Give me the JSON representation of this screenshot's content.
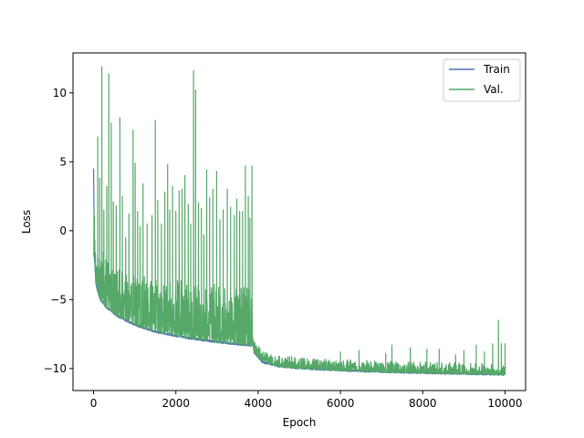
{
  "chart_data": {
    "type": "line",
    "title": "",
    "xlabel": "Epoch",
    "ylabel": "Loss",
    "xlim": [
      -500,
      10500
    ],
    "ylim": [
      -11.6,
      12.9
    ],
    "x_ticks": [
      0,
      2000,
      4000,
      6000,
      8000,
      10000
    ],
    "x_tick_labels": [
      "0",
      "2000",
      "4000",
      "6000",
      "8000",
      "10000"
    ],
    "y_ticks": [
      -10,
      -5,
      0,
      5,
      10
    ],
    "y_tick_labels": [
      "−10",
      "−5",
      "0",
      "5",
      "10"
    ],
    "grid": false,
    "legend_position": "top-right",
    "series": [
      {
        "name": "Train",
        "color": "#4c72b0",
        "baseline": [
          [
            0,
            4.5
          ],
          [
            20,
            -2.0
          ],
          [
            60,
            -4.0
          ],
          [
            150,
            -5.0
          ],
          [
            300,
            -5.6
          ],
          [
            600,
            -6.3
          ],
          [
            1000,
            -6.9
          ],
          [
            1500,
            -7.4
          ],
          [
            2000,
            -7.7
          ],
          [
            2500,
            -7.95
          ],
          [
            3000,
            -8.15
          ],
          [
            3500,
            -8.3
          ],
          [
            3850,
            -8.4
          ],
          [
            3870,
            -8.2
          ],
          [
            3900,
            -8.9
          ],
          [
            4100,
            -9.6
          ],
          [
            4500,
            -9.9
          ],
          [
            5000,
            -10.05
          ],
          [
            6000,
            -10.2
          ],
          [
            7000,
            -10.3
          ],
          [
            8000,
            -10.38
          ],
          [
            9000,
            -10.45
          ],
          [
            10000,
            -10.5
          ]
        ]
      },
      {
        "name": "Val.",
        "color": "#55a868",
        "baseline": [
          [
            0,
            -1.8
          ],
          [
            20,
            -2.3
          ],
          [
            60,
            -4.0
          ],
          [
            150,
            -4.9
          ],
          [
            300,
            -5.5
          ],
          [
            600,
            -6.2
          ],
          [
            1000,
            -6.8
          ],
          [
            1500,
            -7.3
          ],
          [
            2000,
            -7.6
          ],
          [
            2500,
            -7.85
          ],
          [
            3000,
            -8.05
          ],
          [
            3500,
            -8.2
          ],
          [
            3850,
            -8.3
          ],
          [
            3870,
            -7.9
          ],
          [
            3900,
            -8.8
          ],
          [
            4100,
            -9.5
          ],
          [
            4500,
            -9.85
          ],
          [
            5000,
            -10.0
          ],
          [
            6000,
            -10.15
          ],
          [
            7000,
            -10.25
          ],
          [
            8000,
            -10.33
          ],
          [
            9000,
            -10.4
          ],
          [
            10000,
            -10.45
          ]
        ],
        "spikes": [
          [
            100,
            6.8
          ],
          [
            150,
            3.8
          ],
          [
            200,
            11.9
          ],
          [
            250,
            1.5
          ],
          [
            320,
            3.2
          ],
          [
            370,
            11.4
          ],
          [
            430,
            7.8
          ],
          [
            480,
            2.1
          ],
          [
            550,
            1.8
          ],
          [
            640,
            8.2
          ],
          [
            700,
            2.5
          ],
          [
            780,
            -0.5
          ],
          [
            860,
            1.2
          ],
          [
            960,
            7.3
          ],
          [
            1010,
            4.9
          ],
          [
            1070,
            1.4
          ],
          [
            1130,
            0.3
          ],
          [
            1200,
            3.4
          ],
          [
            1300,
            0.5
          ],
          [
            1420,
            1.1
          ],
          [
            1500,
            8.0
          ],
          [
            1560,
            2.2
          ],
          [
            1650,
            0.5
          ],
          [
            1730,
            2.8
          ],
          [
            1800,
            4.8
          ],
          [
            1850,
            1.5
          ],
          [
            1920,
            3.2
          ],
          [
            2000,
            1.4
          ],
          [
            2080,
            2.9
          ],
          [
            2150,
            3.0
          ],
          [
            2220,
            4.0
          ],
          [
            2300,
            1.9
          ],
          [
            2360,
            0.5
          ],
          [
            2430,
            11.6
          ],
          [
            2480,
            10.2
          ],
          [
            2550,
            2.0
          ],
          [
            2620,
            1.6
          ],
          [
            2680,
            -0.3
          ],
          [
            2750,
            4.4
          ],
          [
            2820,
            2.4
          ],
          [
            2900,
            3.0
          ],
          [
            2990,
            4.3
          ],
          [
            3070,
            0.8
          ],
          [
            3150,
            1.5
          ],
          [
            3250,
            3.0
          ],
          [
            3330,
            1.7
          ],
          [
            3420,
            1.1
          ],
          [
            3480,
            2.3
          ],
          [
            3550,
            1.4
          ],
          [
            3620,
            1.4
          ],
          [
            3690,
            4.7
          ],
          [
            3760,
            2.5
          ],
          [
            3800,
            0.9
          ],
          [
            3850,
            4.7
          ],
          [
            4500,
            -9.1
          ],
          [
            5100,
            -9.4
          ],
          [
            6000,
            -8.8
          ],
          [
            6450,
            -8.7
          ],
          [
            7100,
            -8.9
          ],
          [
            7250,
            -8.3
          ],
          [
            7700,
            -8.5
          ],
          [
            8100,
            -8.6
          ],
          [
            8400,
            -8.6
          ],
          [
            8800,
            -9.0
          ],
          [
            9000,
            -8.7
          ],
          [
            9300,
            -8.3
          ],
          [
            9500,
            -8.8
          ],
          [
            9700,
            -8.2
          ],
          [
            9840,
            -6.5
          ],
          [
            9910,
            -8.2
          ],
          [
            10000,
            -8.2
          ]
        ]
      }
    ]
  }
}
